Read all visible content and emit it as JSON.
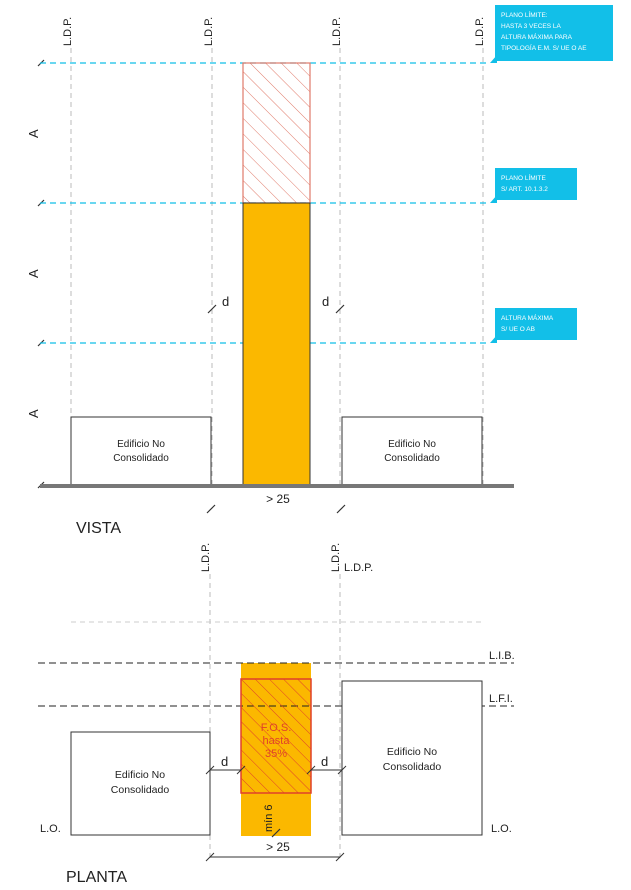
{
  "vista": {
    "title": "VISTA",
    "ldp_labels": [
      "L.D.P.",
      "L.D.P.",
      "L.D.P.",
      "L.D.P."
    ],
    "height_marks": [
      "A",
      "A",
      "A"
    ],
    "callouts": [
      {
        "lines": [
          "PLANO LÍMITE:",
          "HASTA 3 VECES LA",
          "ALTURA MÁXIMA PARA",
          "TIPOLOGÍA E.M. S/ UE O AE"
        ]
      },
      {
        "lines": [
          "PLANO LÍMITE",
          "S/ ART. 10.1.3.2"
        ]
      },
      {
        "lines": [
          "ALTURA MÁXIMA",
          "S/ UE O AB"
        ]
      }
    ],
    "left_building": [
      "Edificio No",
      "Consolidado"
    ],
    "right_building": [
      "Edificio No",
      "Consolidado"
    ],
    "d_left": "d",
    "d_right": "d",
    "width_label": "> 25"
  },
  "planta": {
    "title": "PLANTA",
    "ldp_left": "L.D.P.",
    "ldp_right": "L.D.P.",
    "ldp_right_extra": "L.D.P.",
    "lib": "L.I.B.",
    "lfi": "L.F.I.",
    "lo_left": "L.O.",
    "lo_right": "L.O.",
    "fos": [
      "F.O.S.",
      "hasta",
      "35%"
    ],
    "min_label": "mín 6",
    "left_building": [
      "Edificio No",
      "Consolidado"
    ],
    "right_building": [
      "Edificio No",
      "Consolidado"
    ],
    "d_left": "d",
    "d_right": "d",
    "width_label": "> 25"
  },
  "colors": {
    "orange": "#FBB800",
    "cyan": "#12BFE8",
    "red": "#E0402A",
    "ground": "#777777"
  }
}
